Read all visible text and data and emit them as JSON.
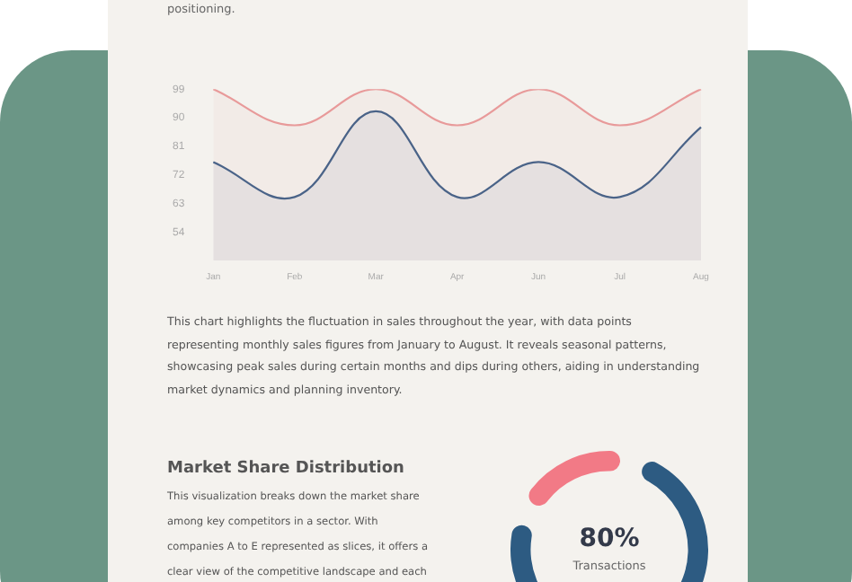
{
  "chart_data": [
    {
      "type": "area",
      "categories": [
        "Jan",
        "Feb",
        "Mar",
        "Apr",
        "Jun",
        "Jul",
        "Aug"
      ],
      "series": [
        {
          "color": "#e89a9a",
          "values": [
            99,
            87.6,
            99,
            87.6,
            99,
            87.6,
            99
          ]
        },
        {
          "color": "#3d5f87",
          "values": [
            76,
            65,
            92,
            65,
            76,
            65,
            87
          ]
        }
      ],
      "ylim": [
        45,
        99
      ],
      "yticks": [
        54,
        63,
        72,
        81,
        90,
        99
      ],
      "grid": false,
      "legend": false,
      "annotations": [
        "positioning.",
        "This chart highlights the fluctuation in sales throughout the year, with data points representing monthly sales figures from January to August. It reveals seasonal patterns, showcasing peak sales during certain months and dips during others, aiding in understanding market dynamics and planning inventory."
      ]
    },
    {
      "type": "donut",
      "title": "Market Share Distribution",
      "categories": [
        null,
        null
      ],
      "values": [
        80,
        20
      ],
      "colors": [
        "#2d5b82",
        "#f27a86"
      ],
      "legend": false,
      "annotations": [
        "80%",
        "Transactions",
        "This visualization breaks down the market share among key competitors in a sector. With companies A to E represented as slices, it offers a clear view of the competitive landscape and each"
      ]
    }
  ]
}
